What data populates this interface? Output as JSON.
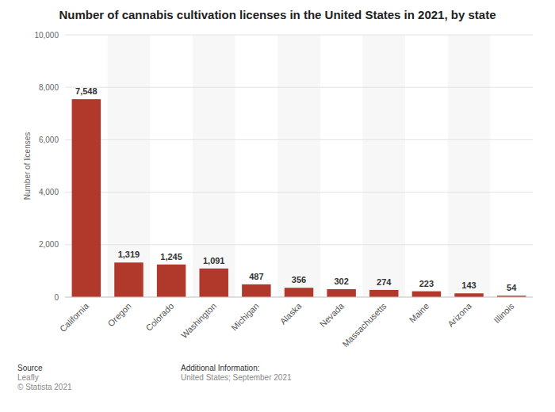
{
  "chart_data": {
    "type": "bar",
    "title": "Number of cannabis cultivation licenses in the United States in 2021, by state",
    "y_label": "Number of licenses",
    "categories": [
      "California",
      "Oregon",
      "Colorado",
      "Washington",
      "Michigan",
      "Alaska",
      "Nevada",
      "Massachusetts",
      "Maine",
      "Arizona",
      "Illinois"
    ],
    "values": [
      7548,
      1319,
      1245,
      1091,
      487,
      356,
      302,
      274,
      223,
      143,
      54
    ],
    "value_labels": [
      "7,548",
      "1,319",
      "1,245",
      "1,091",
      "487",
      "356",
      "302",
      "274",
      "223",
      "143",
      "54"
    ],
    "color": "#b0392b",
    "ylim": [
      0,
      10000
    ],
    "yticks": [
      0,
      {
        "value": 2000,
        "label": "2,000"
      },
      {
        "value": 4000,
        "label": "4,000"
      },
      {
        "value": 6000,
        "label": "6,000"
      },
      {
        "value": 8000,
        "label": "8,000"
      },
      {
        "value": 10000,
        "label": "10,000"
      }
    ],
    "grid": true,
    "data_labels": true,
    "annotations": [
      "Source",
      "Leafly",
      "© Statista 2021",
      "Additional Information:",
      "United States; September 2021"
    ]
  }
}
